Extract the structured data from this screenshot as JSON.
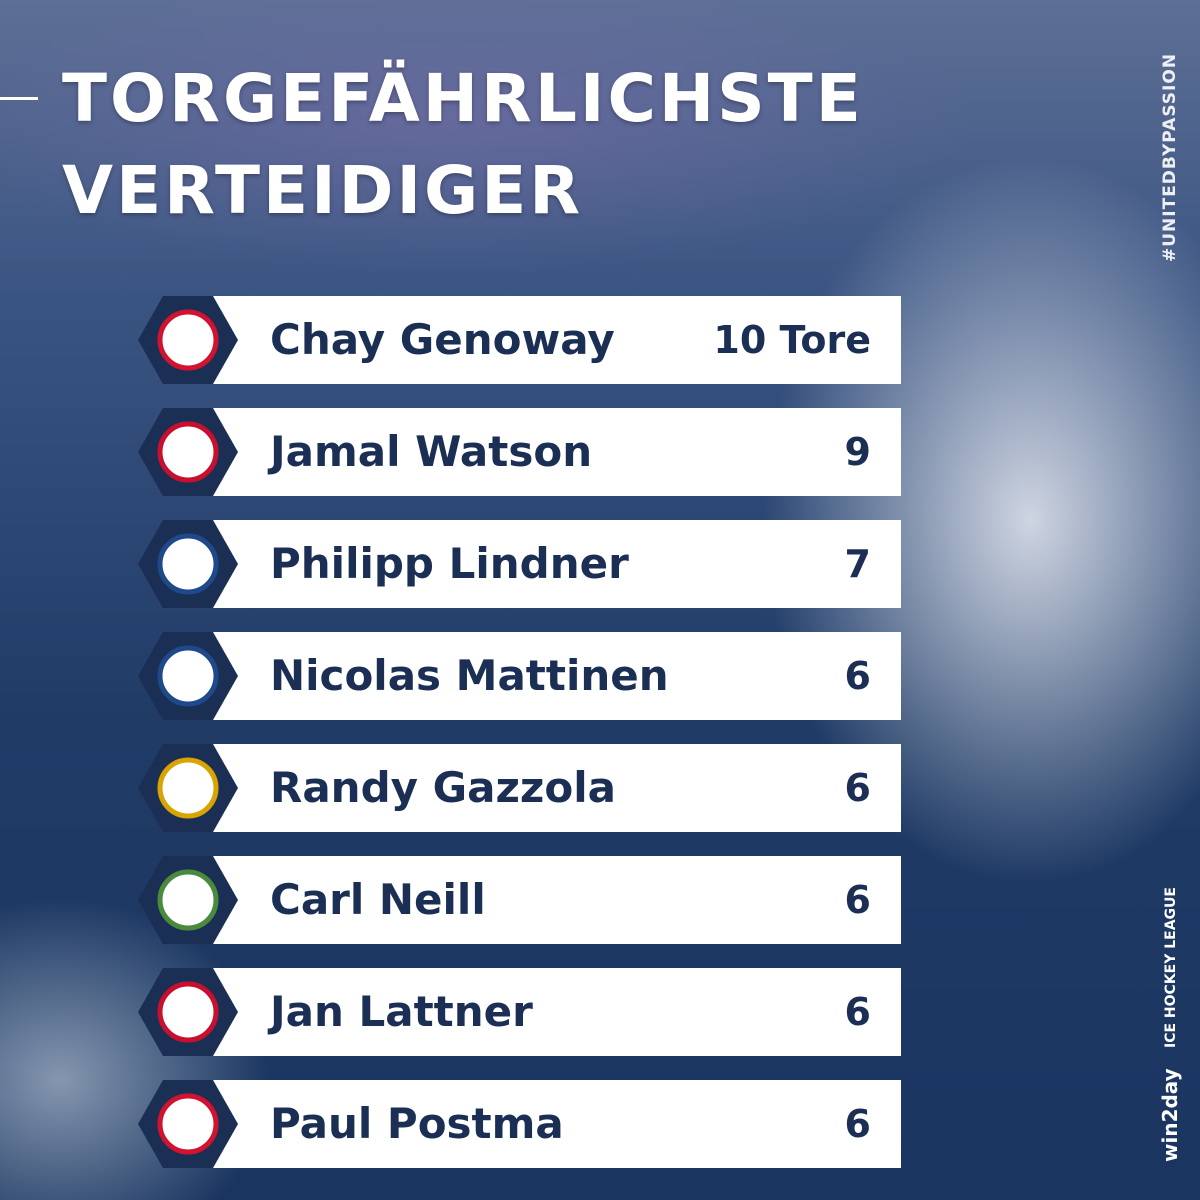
{
  "header": {
    "title_lines": [
      "TORGEFÄHRLICHSTE",
      "VERTEIDIGER"
    ]
  },
  "ranking": {
    "rows": [
      {
        "name": "Chay Genoway",
        "goals": "10 Tore"
      },
      {
        "name": "Jamal Watson",
        "goals": "9"
      },
      {
        "name": "Philipp Lindner",
        "goals": "7"
      },
      {
        "name": "Nicolas Mattinen",
        "goals": "6"
      },
      {
        "name": "Randy Gazzola",
        "goals": "6"
      },
      {
        "name": "Carl Neill",
        "goals": "6"
      },
      {
        "name": "Jan Lattner",
        "goals": "6"
      },
      {
        "name": "Paul Postma",
        "goals": "6"
      }
    ]
  },
  "side": {
    "hashtag": "#UNITEDBYPASSION",
    "sponsor": "win2day",
    "league": "ICE HOCKEY LEAGUE"
  }
}
